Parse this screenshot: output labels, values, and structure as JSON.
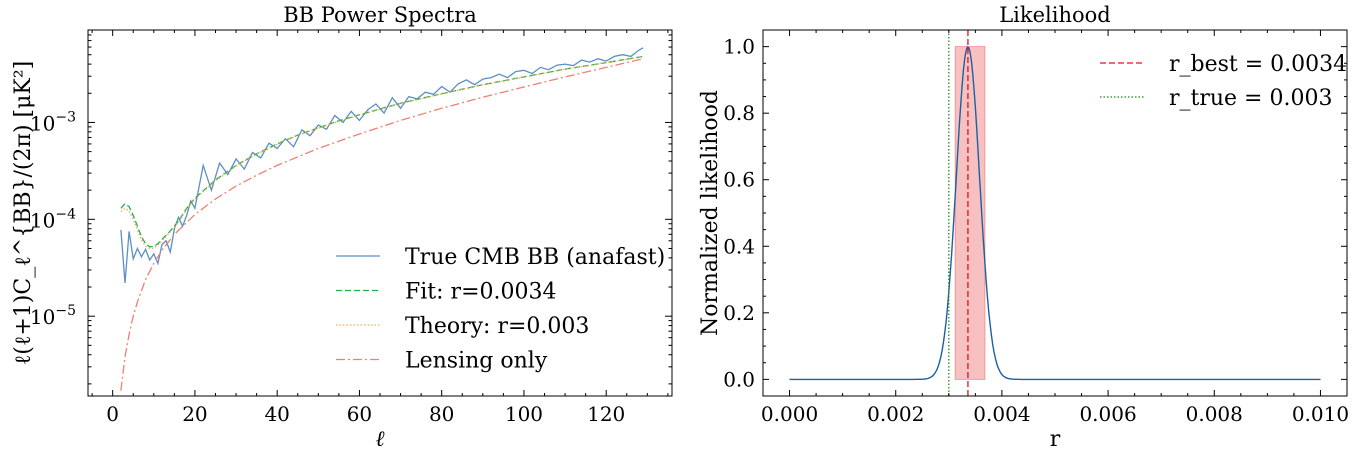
{
  "chart_data": [
    {
      "type": "line",
      "title": "BB Power Spectra",
      "xlabel": "ℓ",
      "ylabel": "ℓ(ℓ+1)C_ℓ^{BB}/(2π) [μK²]",
      "yscale": "log",
      "xlim": [
        -6,
        136
      ],
      "ylim": [
        1.5e-06,
        0.009
      ],
      "x_ticks": [
        0,
        20,
        40,
        60,
        80,
        100,
        120
      ],
      "x_tick_labels": [
        "0",
        "20",
        "40",
        "60",
        "80",
        "100",
        "120"
      ],
      "y_ticks": [
        1e-05,
        0.0001,
        0.001
      ],
      "y_tick_labels": [
        "10",
        "10",
        "10"
      ],
      "y_tick_exponents": [
        "−5",
        "−4",
        "−3"
      ],
      "legend_position": "lower-right",
      "series": [
        {
          "name": "True CMB BB (anafast)",
          "color": "#5b8fc6",
          "style": "solid",
          "x": [
            2,
            3,
            4,
            5,
            6,
            7,
            8,
            9,
            10,
            11,
            12,
            13,
            14,
            15,
            16,
            17,
            18,
            19,
            20,
            22,
            24,
            26,
            28,
            30,
            32,
            34,
            36,
            38,
            40,
            42,
            44,
            46,
            48,
            50,
            52,
            54,
            56,
            58,
            60,
            62,
            64,
            66,
            68,
            70,
            72,
            74,
            76,
            78,
            80,
            82,
            84,
            86,
            88,
            90,
            92,
            94,
            96,
            98,
            100,
            102,
            104,
            106,
            108,
            110,
            112,
            114,
            116,
            118,
            120,
            122,
            124,
            126,
            128,
            129
          ],
          "y": [
            7.8e-05,
            2.2e-05,
            7.5e-05,
            3.9e-05,
            5e-05,
            4.1e-05,
            4.9e-05,
            3.8e-05,
            4.4e-05,
            3.5e-05,
            5.5e-05,
            6e-05,
            4.6e-05,
            8e-05,
            0.000105,
            8.5e-05,
            0.00011,
            0.000155,
            0.00013,
            0.00036,
            0.0002,
            0.00038,
            0.00029,
            0.00042,
            0.00033,
            0.00049,
            0.00043,
            0.00061,
            0.00054,
            0.00068,
            0.00056,
            0.00084,
            0.00073,
            0.00094,
            0.00085,
            0.00118,
            0.001,
            0.0013,
            0.00105,
            0.00135,
            0.00155,
            0.00125,
            0.0018,
            0.0014,
            0.00185,
            0.00175,
            0.00205,
            0.00195,
            0.00235,
            0.00205,
            0.0025,
            0.00275,
            0.00245,
            0.0028,
            0.0029,
            0.00315,
            0.0029,
            0.00335,
            0.00345,
            0.0032,
            0.0037,
            0.0035,
            0.0039,
            0.004,
            0.00385,
            0.0044,
            0.0042,
            0.00455,
            0.0043,
            0.0048,
            0.005,
            0.0048,
            0.0056,
            0.0059
          ]
        },
        {
          "name": "Fit: r=0.0034",
          "color": "#22b24c",
          "style": "dashed",
          "x": [
            2,
            3,
            4,
            5,
            6,
            7,
            8,
            9,
            10,
            11,
            12,
            14,
            16,
            18,
            20,
            25,
            30,
            35,
            40,
            45,
            50,
            55,
            60,
            70,
            80,
            90,
            100,
            110,
            120,
            129
          ],
          "y": [
            0.00013,
            0.000145,
            0.000135,
            0.00011,
            8.5e-05,
            6.6e-05,
            5.6e-05,
            5.2e-05,
            5.25e-05,
            5.6e-05,
            6.2e-05,
            7.6e-05,
            9.6e-05,
            0.00013,
            0.000165,
            0.000255,
            0.00036,
            0.000475,
            0.0006,
            0.00074,
            0.00088,
            0.00104,
            0.0012,
            0.00158,
            0.00198,
            0.00245,
            0.00295,
            0.00355,
            0.00415,
            0.0048
          ]
        },
        {
          "name": "Theory: r=0.003",
          "color": "#f2a65a",
          "style": "dotted",
          "x": [
            2,
            3,
            4,
            5,
            6,
            7,
            8,
            9,
            10,
            11,
            12,
            14,
            16,
            18,
            20,
            25,
            30,
            35,
            40,
            45,
            50,
            55,
            60,
            70,
            80,
            90,
            100,
            110,
            120,
            129
          ],
          "y": [
            0.00012,
            0.00013,
            0.000122,
            0.0001,
            7.8e-05,
            6.1e-05,
            5.3e-05,
            5e-05,
            5.05e-05,
            5.4e-05,
            6e-05,
            7.4e-05,
            9.4e-05,
            0.000127,
            0.000162,
            0.00025,
            0.000355,
            0.00047,
            0.000595,
            0.000735,
            0.000875,
            0.00103,
            0.00119,
            0.00157,
            0.00197,
            0.00244,
            0.00294,
            0.00354,
            0.00414,
            0.00478
          ]
        },
        {
          "name": "Lensing only",
          "color": "#f08070",
          "style": "dashdot",
          "x": [
            2,
            3,
            4,
            5,
            6,
            8,
            10,
            12,
            15,
            20,
            25,
            30,
            35,
            40,
            50,
            60,
            70,
            80,
            90,
            100,
            110,
            120,
            129
          ],
          "y": [
            1.7e-06,
            3.8e-06,
            6.5e-06,
            1e-05,
            1.4e-05,
            2.4e-05,
            3.5e-05,
            4.8e-05,
            7e-05,
            0.000112,
            0.000162,
            0.00022,
            0.000285,
            0.00036,
            0.00054,
            0.00076,
            0.00105,
            0.0014,
            0.00182,
            0.00232,
            0.00295,
            0.0037,
            0.00455
          ]
        }
      ]
    },
    {
      "type": "line",
      "title": "Likelihood",
      "xlabel": "r",
      "ylabel": "Normalized likelihood",
      "xlim": [
        -0.0005,
        0.0105
      ],
      "ylim": [
        -0.05,
        1.05
      ],
      "x_ticks": [
        0.0,
        0.002,
        0.004,
        0.006,
        0.008,
        0.01
      ],
      "x_tick_labels": [
        "0.000",
        "0.002",
        "0.004",
        "0.006",
        "0.008",
        "0.010"
      ],
      "y_ticks": [
        0.0,
        0.2,
        0.4,
        0.6,
        0.8,
        1.0
      ],
      "y_tick_labels": [
        "0.0",
        "0.2",
        "0.4",
        "0.6",
        "0.8",
        "1.0"
      ],
      "legend_position": "upper-right",
      "likelihood": {
        "mean": 0.00336,
        "sigma": 0.00022,
        "color": "#1f5fa0"
      },
      "band": {
        "x0": 0.00312,
        "x1": 0.00368,
        "y0": 0.0,
        "y1": 1.0,
        "color": "#f4a0a0"
      },
      "vlines": [
        {
          "name": "r_best = 0.0034",
          "x": 0.00336,
          "color": "#e0141e",
          "style": "dashed"
        },
        {
          "name": "r_true = 0.003",
          "x": 0.003,
          "color": "#1f8a1f",
          "style": "dotted"
        }
      ]
    }
  ]
}
